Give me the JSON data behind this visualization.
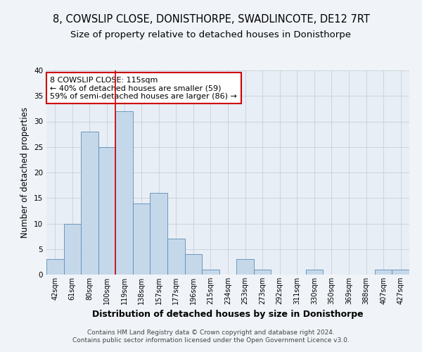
{
  "title_line1": "8, COWSLIP CLOSE, DONISTHORPE, SWADLINCOTE, DE12 7RT",
  "title_line2": "Size of property relative to detached houses in Donisthorpe",
  "xlabel": "Distribution of detached houses by size in Donisthorpe",
  "ylabel": "Number of detached properties",
  "footer_line1": "Contains HM Land Registry data © Crown copyright and database right 2024.",
  "footer_line2": "Contains public sector information licensed under the Open Government Licence v3.0.",
  "bar_labels": [
    "42sqm",
    "61sqm",
    "80sqm",
    "100sqm",
    "119sqm",
    "138sqm",
    "157sqm",
    "177sqm",
    "196sqm",
    "215sqm",
    "234sqm",
    "253sqm",
    "273sqm",
    "292sqm",
    "311sqm",
    "330sqm",
    "350sqm",
    "369sqm",
    "388sqm",
    "407sqm",
    "427sqm"
  ],
  "bar_values": [
    3,
    10,
    28,
    25,
    32,
    14,
    16,
    7,
    4,
    1,
    0,
    3,
    1,
    0,
    0,
    1,
    0,
    0,
    0,
    1,
    1
  ],
  "bar_color": "#c5d8ea",
  "bar_edgecolor": "#5b8db8",
  "grid_color": "#c8d0dc",
  "background_color": "#f0f4f8",
  "plot_bg_color": "#e8eef5",
  "annotation_text": "8 COWSLIP CLOSE: 115sqm\n← 40% of detached houses are smaller (59)\n59% of semi-detached houses are larger (86) →",
  "annotation_box_edgecolor": "#cc0000",
  "annotation_box_facecolor": "white",
  "vline_color": "#cc0000",
  "vline_x": 3.5,
  "ylim": [
    0,
    40
  ],
  "title_fontsize": 10.5,
  "subtitle_fontsize": 9.5,
  "annotation_fontsize": 8,
  "ylabel_fontsize": 8.5,
  "xlabel_fontsize": 9,
  "tick_fontsize": 7,
  "footer_fontsize": 6.5
}
